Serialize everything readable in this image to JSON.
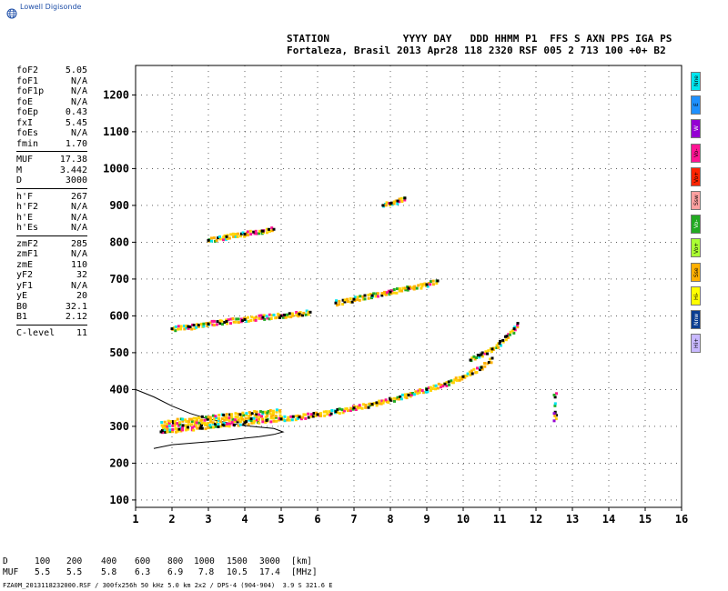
{
  "logo": {
    "text": "Lowell Digisonde",
    "icon": "globe-icon"
  },
  "header": {
    "labels": "STATION            YYYY DAY   DDD HHMM P1  FFS S AXN PPS IGA PS",
    "values": "Fortaleza, Brasil 2013 Apr28 118 2320 RSF 005 2 713 100 +0+ B2"
  },
  "params_group1": [
    {
      "name": "foF2",
      "value": "5.05"
    },
    {
      "name": "foF1",
      "value": "N/A"
    },
    {
      "name": "foF1p",
      "value": "N/A"
    },
    {
      "name": "foE",
      "value": "N/A"
    },
    {
      "name": "foEp",
      "value": "0.43"
    },
    {
      "name": "fxI",
      "value": "5.45"
    },
    {
      "name": "foEs",
      "value": "N/A"
    },
    {
      "name": "fmin",
      "value": "1.70"
    }
  ],
  "params_group2": [
    {
      "name": "MUF",
      "value": "17.38"
    },
    {
      "name": "M",
      "value": "3.442"
    },
    {
      "name": "D",
      "value": "3000"
    }
  ],
  "params_group3": [
    {
      "name": "h'F",
      "value": "267"
    },
    {
      "name": "h'F2",
      "value": "N/A"
    },
    {
      "name": "h'E",
      "value": "N/A"
    },
    {
      "name": "h'Es",
      "value": "N/A"
    }
  ],
  "params_group4": [
    {
      "name": "zmF2",
      "value": "285"
    },
    {
      "name": "zmF1",
      "value": "N/A"
    },
    {
      "name": "zmE",
      "value": "110"
    },
    {
      "name": "yF2",
      "value": "32"
    },
    {
      "name": "yF1",
      "value": "N/A"
    },
    {
      "name": "yE",
      "value": "20"
    },
    {
      "name": "B0",
      "value": "32.1"
    },
    {
      "name": "B1",
      "value": "2.12"
    }
  ],
  "params_group5": [
    {
      "name": "C-level",
      "value": "11"
    }
  ],
  "legend": [
    {
      "label": "Nne",
      "color": "#00e5ee"
    },
    {
      "label": "E",
      "color": "#1e90ff"
    },
    {
      "label": "W",
      "color": "#9400d3"
    },
    {
      "label": "Vo-",
      "color": "#ff1493"
    },
    {
      "label": "Vo+",
      "color": "#ff2400"
    },
    {
      "label": "Ssw",
      "color": "#ffa0a0"
    },
    {
      "label": "Vo-",
      "color": "#22aa22"
    },
    {
      "label": "Vo+",
      "color": "#aaff33"
    },
    {
      "label": "Sse",
      "color": "#ffb000"
    },
    {
      "label": "Hi-",
      "color": "#ffff00"
    },
    {
      "label": "Nnw",
      "color": "#0b3d91"
    },
    {
      "label": "Hi+",
      "color": "#c8b8ff"
    }
  ],
  "distance_table": {
    "row1_label": "D",
    "row1": [
      "100",
      "200",
      "400",
      "600",
      "800",
      "1000",
      "1500",
      "3000"
    ],
    "row1_unit": "[km]",
    "row2_label": "MUF",
    "row2": [
      "5.5",
      "5.5",
      "5.8",
      "6.3",
      "6.9",
      "7.8",
      "10.5",
      "17.4"
    ],
    "row2_unit": "[MHz]"
  },
  "footer": "FZA0M_2013118232000.RSF / 300fx256h 50 kHz 5.0 km 2x2 / DPS-4 (904-904)  3.9 S 321.6 E",
  "chart_data": {
    "type": "scatter",
    "xlim": [
      1,
      16
    ],
    "ylim": [
      80,
      1280
    ],
    "x_ticks": [
      1,
      2,
      3,
      4,
      5,
      6,
      7,
      8,
      9,
      10,
      11,
      12,
      13,
      14,
      15,
      16
    ],
    "y_ticks": [
      100,
      200,
      300,
      400,
      500,
      600,
      700,
      800,
      900,
      1000,
      1100,
      1200
    ],
    "grid": "dotted",
    "traces": [
      {
        "name": "F-layer o-trace",
        "x": [
          1.7,
          2.2,
          2.8,
          3.4,
          4.0,
          4.6,
          5.0,
          5.5,
          6.0,
          6.5,
          7.0,
          7.5,
          8.0,
          8.5,
          9.0,
          9.5,
          10.0,
          10.5,
          10.8
        ],
        "y": [
          285,
          292,
          298,
          304,
          310,
          316,
          320,
          325,
          332,
          340,
          350,
          360,
          372,
          385,
          400,
          415,
          435,
          460,
          485
        ]
      },
      {
        "name": "F-layer x-trace",
        "x": [
          10.2,
          10.5,
          10.8,
          11.0,
          11.2,
          11.4,
          11.5
        ],
        "y": [
          480,
          495,
          510,
          525,
          545,
          565,
          580
        ]
      },
      {
        "name": "second hop",
        "x": [
          2.0,
          2.5,
          3.0,
          3.5,
          4.0,
          4.5,
          5.0,
          5.5,
          5.8
        ],
        "y": [
          565,
          570,
          578,
          585,
          590,
          596,
          600,
          605,
          610
        ]
      },
      {
        "name": "third hop",
        "x": [
          3.0,
          3.5,
          4.0,
          4.5,
          4.8
        ],
        "y": [
          805,
          815,
          822,
          830,
          835
        ]
      },
      {
        "name": "upper second hop",
        "x": [
          6.5,
          7.0,
          7.5,
          8.0,
          8.5,
          9.0,
          9.3
        ],
        "y": [
          635,
          645,
          655,
          665,
          675,
          685,
          695
        ]
      },
      {
        "name": "high scatter",
        "x": [
          7.8,
          8.0,
          8.2,
          8.4
        ],
        "y": [
          900,
          905,
          912,
          920
        ]
      },
      {
        "name": "isolated",
        "x": [
          12.5,
          12.5,
          12.5
        ],
        "y": [
          385,
          335,
          315
        ]
      }
    ],
    "profile_curve": {
      "x": [
        1.0,
        1.5,
        2.0,
        2.5,
        3.0,
        3.5,
        4.0,
        4.4,
        4.8,
        5.05,
        4.8,
        4.4,
        4.0,
        3.5,
        3.0,
        2.5,
        2.0,
        1.5
      ],
      "y": [
        400,
        380,
        355,
        335,
        320,
        310,
        302,
        298,
        294,
        285,
        278,
        272,
        268,
        262,
        258,
        254,
        250,
        240
      ]
    }
  }
}
